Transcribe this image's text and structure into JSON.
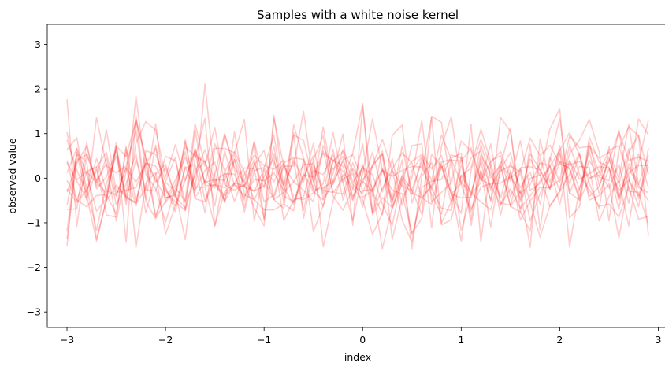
{
  "chart_data": {
    "type": "line",
    "title": "Samples with a white noise kernel",
    "xlabel": "index",
    "ylabel": "observed value",
    "xlim": [
      -3.2,
      3.1
    ],
    "ylim": [
      -3.35,
      3.45
    ],
    "xticks": [
      {
        "value": -3,
        "label": "−3"
      },
      {
        "value": -2,
        "label": "−2"
      },
      {
        "value": -1,
        "label": "−1"
      },
      {
        "value": 0,
        "label": "0"
      },
      {
        "value": 1,
        "label": "1"
      },
      {
        "value": 2,
        "label": "2"
      },
      {
        "value": 3,
        "label": "3"
      }
    ],
    "yticks": [
      {
        "value": -3,
        "label": "−3"
      },
      {
        "value": -2,
        "label": "−2"
      },
      {
        "value": -1,
        "label": "−1"
      },
      {
        "value": 0,
        "label": "0"
      },
      {
        "value": 1,
        "label": "1"
      },
      {
        "value": 2,
        "label": "2"
      },
      {
        "value": 3,
        "label": "3"
      }
    ],
    "grid": false,
    "legend": "none",
    "line_color": "#ff0000",
    "line_opacity": 0.2,
    "x": [
      -3.0,
      -2.9,
      -2.8,
      -2.7,
      -2.6,
      -2.5,
      -2.4,
      -2.3,
      -2.2,
      -2.1,
      -2.0,
      -1.9,
      -1.8,
      -1.7,
      -1.6,
      -1.5,
      -1.4,
      -1.3,
      -1.2,
      -1.1,
      -1.0,
      -0.9,
      -0.8,
      -0.7,
      -0.6,
      -0.5,
      -0.4,
      -0.3,
      -0.2,
      -0.1,
      0.0,
      0.1,
      0.2,
      0.3,
      0.4,
      0.5,
      0.6,
      0.7,
      0.8,
      0.9,
      1.0,
      1.1,
      1.2,
      1.3,
      1.4,
      1.5,
      1.6,
      1.7,
      1.8,
      1.9,
      2.0,
      2.1,
      2.2,
      2.3,
      2.4,
      2.5,
      2.6,
      2.7,
      2.8,
      2.9
    ],
    "series": [
      {
        "values": [
          1.77,
          -1.08,
          0.56,
          -0.06,
          0.33,
          -0.96,
          0.14,
          1.33,
          0.47,
          -0.86,
          -0.09,
          -0.3,
          -1.38,
          0.44,
          1.34,
          -1.06,
          -0.3,
          -0.11,
          0.23,
          0.21,
          -0.9,
          1.41,
          -0.2,
          -0.59,
          0.02,
          0.5,
          -1.54,
          -0.51,
          0.08,
          -0.5,
          0.28,
          -0.24,
          -1.58,
          -0.65,
          -0.15,
          0.73,
          0.77,
          -1.11,
          0.72,
          1.38,
          -0.14,
          -0.75,
          0.17,
          -0.49,
          0.31,
          -0.63,
          -0.28,
          -1.55,
          0.88,
          -0.1,
          0.64,
          -1.54,
          -0.22,
          0.4,
          0.02,
          -0.06,
          1.09,
          -0.29,
          -0.32,
          -1.04
        ]
      },
      {
        "values": [
          -0.61,
          0.54,
          0.37,
          -1.37,
          -0.47,
          0.72,
          0.49,
          1.29,
          0.43,
          -0.03,
          -0.45,
          -0.35,
          0.86,
          -0.46,
          -0.53,
          -0.07,
          0.1,
          0.09,
          -0.5,
          0.82,
          -0.95,
          0.37,
          -0.17,
          1.02,
          -0.9,
          0.17,
          0.08,
          0.52,
          -0.1,
          -0.95,
          0.11,
          1.33,
          0.2,
          -0.56,
          0.41,
          -1.58,
          0.04,
          0.35,
          -1.01,
          -0.52,
          0.06,
          -0.31,
          0.36,
          -0.51,
          1.36,
          1.05,
          -0.53,
          -0.01,
          0.07,
          1.1,
          1.56,
          -0.89,
          -0.64,
          0.82,
          -0.16,
          0.38,
          1.04,
          0.4,
          0.47,
          0.38
        ]
      },
      {
        "values": [
          0.4,
          -0.5,
          0.14,
          -0.1,
          1.09,
          -0.32,
          -0.27,
          -0.21,
          0.34,
          0.27,
          -0.19,
          -0.75,
          0.26,
          -0.3,
          2.11,
          0.01,
          -0.5,
          1.04,
          -0.37,
          -0.48,
          -0.71,
          -0.71,
          -0.58,
          -0.73,
          0.41,
          -1.2,
          -0.61,
          0.11,
          0.99,
          -1.06,
          1.62,
          -0.41,
          0.61,
          -0.7,
          -0.02,
          -0.37,
          0.46,
          -0.06,
          0.97,
          0.42,
          -0.1,
          -0.33,
          -0.53,
          -0.71,
          0.17,
          0.27,
          0.14,
          0.9,
          0.5,
          0.74,
          0.32,
          0.22,
          -0.45,
          0.72,
          0.45,
          0.58,
          -0.01,
          1.2,
          -0.15,
          -0.51
        ]
      },
      {
        "values": [
          -1.53,
          0.66,
          -0.22,
          -1.17,
          -0.12,
          0.5,
          -0.44,
          -0.54,
          0.43,
          -0.09,
          0.24,
          -0.42,
          -0.67,
          0.13,
          0.64,
          -0.08,
          -0.52,
          -0.11,
          -0.17,
          0.43,
          -0.53,
          -0.38,
          0.32,
          -0.44,
          -0.48,
          -0.33,
          -0.12,
          1.02,
          -0.08,
          0.57,
          1.67,
          -0.82,
          -0.44,
          -0.66,
          0.06,
          0.38,
          0.53,
          0.21,
          0.51,
          -0.36,
          -0.44,
          -0.43,
          0.75,
          0.01,
          0.29,
          1.13,
          -0.77,
          0.75,
          -1.15,
          0.41,
          1.34,
          -0.35,
          0.26,
          0.24,
          -0.96,
          -0.41,
          -0.05,
          -1.07,
          0.34,
          1.31
        ]
      },
      {
        "values": [
          0.35,
          -0.07,
          -0.46,
          0.19,
          -0.51,
          0.66,
          -0.4,
          1.84,
          0.09,
          -0.24,
          -0.99,
          -0.22,
          -0.51,
          1.23,
          0.27,
          1.14,
          -0.15,
          -0.27,
          -0.14,
          -0.66,
          -1.07,
          1.34,
          0.27,
          0.27,
          1.5,
          -0.08,
          -0.64,
          0.41,
          0.27,
          -0.41,
          -0.07,
          -0.29,
          -0.82,
          0.96,
          1.19,
          -0.56,
          0.14,
          1.37,
          -1.05,
          -0.93,
          0.05,
          0.23,
          1.1,
          0.36,
          0.6,
          0.0,
          0.2,
          -0.54,
          -1.32,
          -0.62,
          -0.28,
          0.56,
          0.85,
          1.32,
          0.59,
          -0.96,
          0.66,
          1.15,
          0.95,
          0.09
        ]
      },
      {
        "values": [
          -0.24,
          -0.55,
          -0.26,
          0.25,
          -0.83,
          -0.87,
          0.71,
          -1.56,
          -0.11,
          0.13,
          -1.26,
          -0.62,
          0.23,
          0.31,
          -0.77,
          0.67,
          0.67,
          0.57,
          1.32,
          -0.97,
          0.19,
          -0.48,
          -0.68,
          0.97,
          0.85,
          -0.08,
          0.56,
          0.4,
          0.15,
          -0.22,
          -0.48,
          -1.26,
          -0.79,
          0.22,
          -0.94,
          -1.43,
          -0.21,
          -0.07,
          -0.03,
          0.52,
          0.45,
          -1.06,
          0.18,
          -1.09,
          0.26,
          -0.63,
          -0.76,
          -1.19,
          0.46,
          -0.25,
          0.56,
          -0.13,
          0.53,
          -0.49,
          -0.39,
          -0.13,
          -1.34,
          -0.08,
          1.33,
          0.97
        ]
      },
      {
        "values": [
          -1.2,
          0.58,
          -0.49,
          1.36,
          0.28,
          0.12,
          0.27,
          1.08,
          -0.47,
          0.74,
          -0.44,
          -0.39,
          0.59,
          -0.44,
          -0.06,
          -0.22,
          0.97,
          0.19,
          -0.76,
          0.17,
          0.24,
          0.96,
          -0.4,
          -0.53,
          0.11,
          -0.3,
          -0.49,
          -0.11,
          0.38,
          -0.15,
          -0.34,
          0.3,
          0.55,
          -0.5,
          0.04,
          -0.26,
          -0.81,
          1.39,
          1.25,
          -0.25,
          -1.41,
          0.17,
          0.87,
          0.26,
          -0.82,
          0.18,
          -0.94,
          -0.51,
          -0.2,
          -0.22,
          0.73,
          -0.33,
          -0.49,
          0.92,
          0.36,
          0.25,
          -0.71,
          0.57,
          0.97,
          -1.29
        ]
      },
      {
        "values": [
          1.03,
          -0.04,
          0.15,
          0.25,
          0.58,
          -0.41,
          0.23,
          -0.09,
          0.33,
          0.67,
          -0.29,
          -0.53,
          -0.72,
          1.08,
          -0.17,
          -0.15,
          -0.21,
          0.43,
          -0.2,
          -0.28,
          -0.18,
          0.71,
          -0.56,
          1.19,
          0.46,
          -0.23,
          1.15,
          -0.14,
          0.41,
          0.52,
          -0.04,
          0.27,
          0.55,
          -1.37,
          -0.46,
          0.0,
          1.3,
          -0.53,
          -0.32,
          -0.1,
          0.83,
          0.61,
          -0.06,
          0.38,
          0.51,
          -0.42,
          0.14,
          -0.96,
          -0.34,
          0.1,
          0.37,
          0.3,
          0.38,
          0.01,
          0.06,
          0.48,
          -0.42,
          0.24,
          -0.21,
          -0.33
        ]
      },
      {
        "values": [
          -0.7,
          -0.69,
          0.8,
          -0.24,
          0.03,
          0.63,
          -0.59,
          0.79,
          1.27,
          1.08,
          0.03,
          0.75,
          -0.05,
          0.61,
          -0.5,
          0.07,
          1.0,
          0.24,
          -0.09,
          -0.31,
          0.23,
          -0.08,
          0.35,
          0.46,
          0.42,
          -0.26,
          -0.22,
          -0.07,
          0.64,
          0.16,
          -0.43,
          -0.28,
          0.18,
          -0.27,
          -0.35,
          -1.23,
          -0.91,
          0.54,
          0.25,
          -0.36,
          -0.79,
          1.21,
          -1.43,
          0.34,
          -0.55,
          -0.61,
          0.23,
          0.26,
          0.18,
          -0.21,
          -0.04,
          0.95,
          0.68,
          0.71,
          0.13,
          0.63,
          0.73,
          -0.01,
          -0.64,
          0.68
        ]
      },
      {
        "values": [
          -1.37,
          0.41,
          0.53,
          -0.08,
          -0.34,
          0.8,
          -1.44,
          1.41,
          -0.52,
          -0.91,
          -0.51,
          -0.04,
          0.47,
          -0.2,
          -0.2,
          -1.08,
          0.13,
          0.59,
          0.14,
          -0.5,
          0.03,
          0.47,
          -0.95,
          -0.49,
          -0.42,
          0.41,
          0.95,
          -0.4,
          -0.72,
          -0.23,
          0.77,
          -0.77,
          0.18,
          0.04,
          0.17,
          0.26,
          0.25,
          -0.24,
          -0.67,
          -0.73,
          0.48,
          -0.7,
          -0.2,
          -0.12,
          -0.11,
          0.02,
          -0.34,
          -0.15,
          0.34,
          0.28,
          -0.28,
          0.75,
          0.08,
          -0.26,
          -0.63,
          -0.58,
          -0.87,
          -0.19,
          -0.92,
          -0.86
        ]
      },
      {
        "values": [
          0.64,
          0.91,
          -0.39,
          -1.41,
          -0.5,
          -0.16,
          -0.42,
          -0.57,
          -0.23,
          1.22,
          -0.56,
          -0.15,
          0.7,
          0.5,
          0.37,
          -0.15,
          -0.39,
          -0.13,
          -0.42,
          -0.03,
          -0.06,
          0.12,
          -0.28,
          0.44,
          -0.08,
          0.78,
          -0.47,
          0.38,
          0.6,
          -0.09,
          0.23,
          0.08,
          -0.58,
          -1.06,
          0.0,
          -1.28,
          -0.47,
          -0.15,
          0.36,
          0.42,
          -1.18,
          -0.36,
          -0.1,
          0.77,
          -0.59,
          -0.24,
          -0.67,
          -0.4,
          -0.06,
          0.27,
          0.62,
          1.02,
          0.52,
          -0.11,
          -0.69,
          0.71,
          -0.49,
          0.12,
          0.29,
          0.29
        ]
      },
      {
        "values": [
          -0.05,
          -0.49,
          -0.64,
          -0.39,
          -0.37,
          -0.8,
          0.67,
          -0.54,
          0.33,
          -0.88,
          -0.23,
          -0.62,
          -0.05,
          0.66,
          -0.09,
          -0.03,
          -0.05,
          0.53,
          -0.08,
          0.82,
          -0.06,
          -0.48,
          -0.32,
          -0.08,
          0.3,
          0.33,
          -0.28,
          -0.32,
          -0.02,
          0.1,
          -0.65,
          0.28,
          0.87,
          0.17,
          -0.18,
          -0.27,
          0.36,
          -0.38,
          -0.81,
          0.45,
          0.56,
          -0.94,
          0.46,
          -0.26,
          0.38,
          -0.06,
          0.84,
          -0.27,
          -0.12,
          0.26,
          -0.6,
          0.39,
          -0.02,
          0.1,
          0.26,
          0.23,
          -0.28,
          -0.05,
          -0.4,
          0.39
        ]
      },
      {
        "values": [
          0.12,
          0.67,
          0.09,
          -0.74,
          -0.46,
          0.73,
          -0.49,
          0.42,
          -0.26,
          -0.29,
          0.49,
          0.39,
          -0.54,
          0.66,
          -0.13,
          0.77,
          0.16,
          -0.52,
          0.09,
          0.52,
          0.28,
          0.2,
          0.41,
          -0.55,
          0.07,
          0.03,
          0.61,
          -0.31,
          -0.36,
          0.35,
          -0.28,
          -0.25,
          0.22,
          -0.49,
          0.72,
          -0.34,
          -0.43,
          -0.18,
          0.24,
          0.41,
          0.38,
          0.68,
          -0.03,
          -0.15,
          -0.61,
          0.12,
          -0.48,
          0.55,
          0.19,
          -0.24,
          0.36,
          0.21,
          -0.5,
          -0.02,
          0.14,
          -0.22,
          0.31,
          -0.56,
          0.55,
          -0.22
        ]
      },
      {
        "values": [
          0.86,
          0.18,
          -0.32,
          0.44,
          -0.28,
          -0.38,
          0.24,
          -0.64,
          0.62,
          0.53,
          -0.07,
          0.47,
          -0.73,
          0.09,
          0.4,
          -0.62,
          0.61,
          -0.17,
          -0.19,
          0.29,
          0.63,
          -0.45,
          0.27,
          -0.08,
          -0.27,
          -0.53,
          0.73,
          0.19,
          0.49,
          -0.47,
          0.3,
          -0.78,
          -0.23,
          0.21,
          0.57,
          0.34,
          -0.44,
          -0.58,
          0.29,
          -0.35,
          -0.12,
          0.46,
          0.61,
          -0.22,
          0.22,
          0.57,
          -0.33,
          0.43,
          0.06,
          -0.63,
          -0.31,
          0.09,
          0.57,
          -0.41,
          -0.19,
          0.42,
          -0.12,
          0.66,
          -0.46,
          0.26
        ]
      },
      {
        "values": [
          -0.31,
          0.34,
          0.72,
          -0.18,
          0.47,
          -0.6,
          -0.13,
          0.55,
          -0.78,
          0.09,
          0.31,
          -0.42,
          0.82,
          -0.27,
          0.18,
          0.36,
          -0.55,
          0.43,
          -0.66,
          0.34,
          -0.21,
          0.55,
          -0.16,
          0.38,
          -0.73,
          0.29,
          -0.34,
          0.65,
          -0.49,
          0.22,
          -0.12,
          0.58,
          -0.31,
          0.44,
          -0.61,
          0.17,
          0.49,
          -0.25,
          0.33,
          -0.57,
          0.28,
          -0.38,
          0.52,
          0.11,
          -0.44,
          0.36,
          -0.21,
          0.14,
          -0.58,
          0.47,
          -0.09,
          0.39,
          -0.26,
          0.61,
          -0.35,
          0.21,
          -0.47,
          0.32,
          -0.14,
          0.51
        ]
      }
    ]
  }
}
